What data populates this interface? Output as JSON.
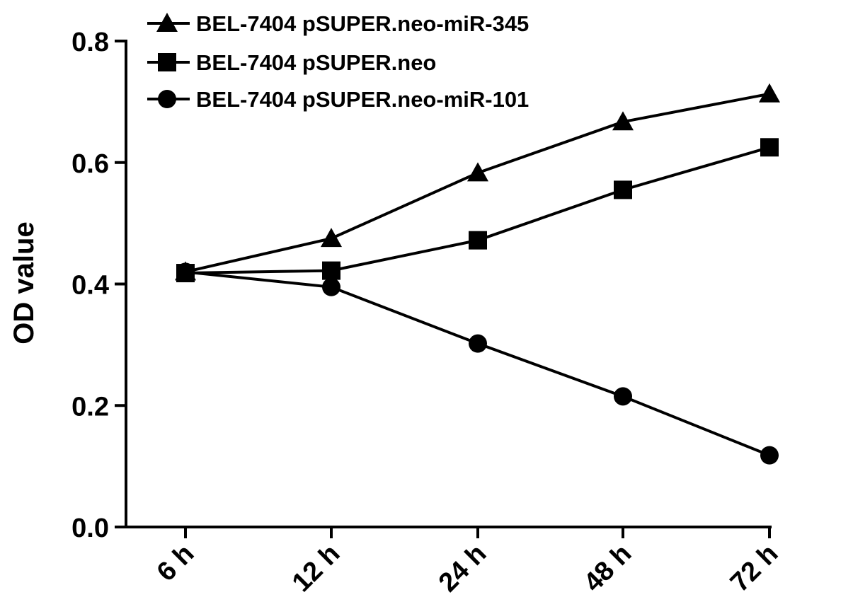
{
  "chart_data": {
    "type": "line",
    "categories": [
      "6 h",
      "12 h",
      "24 h",
      "48 h",
      "72 h"
    ],
    "ylabel": "OD value",
    "xlabel": "",
    "ylim": [
      0,
      0.8
    ],
    "yticks": [
      "0.0",
      "0.2",
      "0.4",
      "0.6",
      "0.8"
    ],
    "ytick_values": [
      0,
      0.2,
      0.4,
      0.6,
      0.8
    ],
    "grid": false,
    "legend_position": "top-left",
    "series": [
      {
        "name": "BEL-7404 pSUPER.neo-miR-345",
        "marker": "triangle",
        "values": [
          0.42,
          0.475,
          0.583,
          0.667,
          0.713
        ]
      },
      {
        "name": "BEL-7404 pSUPER.neo",
        "marker": "square",
        "values": [
          0.418,
          0.422,
          0.472,
          0.555,
          0.625
        ]
      },
      {
        "name": "BEL-7404 pSUPER.neo-miR-101",
        "marker": "circle",
        "values": [
          0.42,
          0.395,
          0.302,
          0.215,
          0.118
        ]
      }
    ],
    "colors": {
      "line": "#000000",
      "marker": "#000000"
    }
  }
}
